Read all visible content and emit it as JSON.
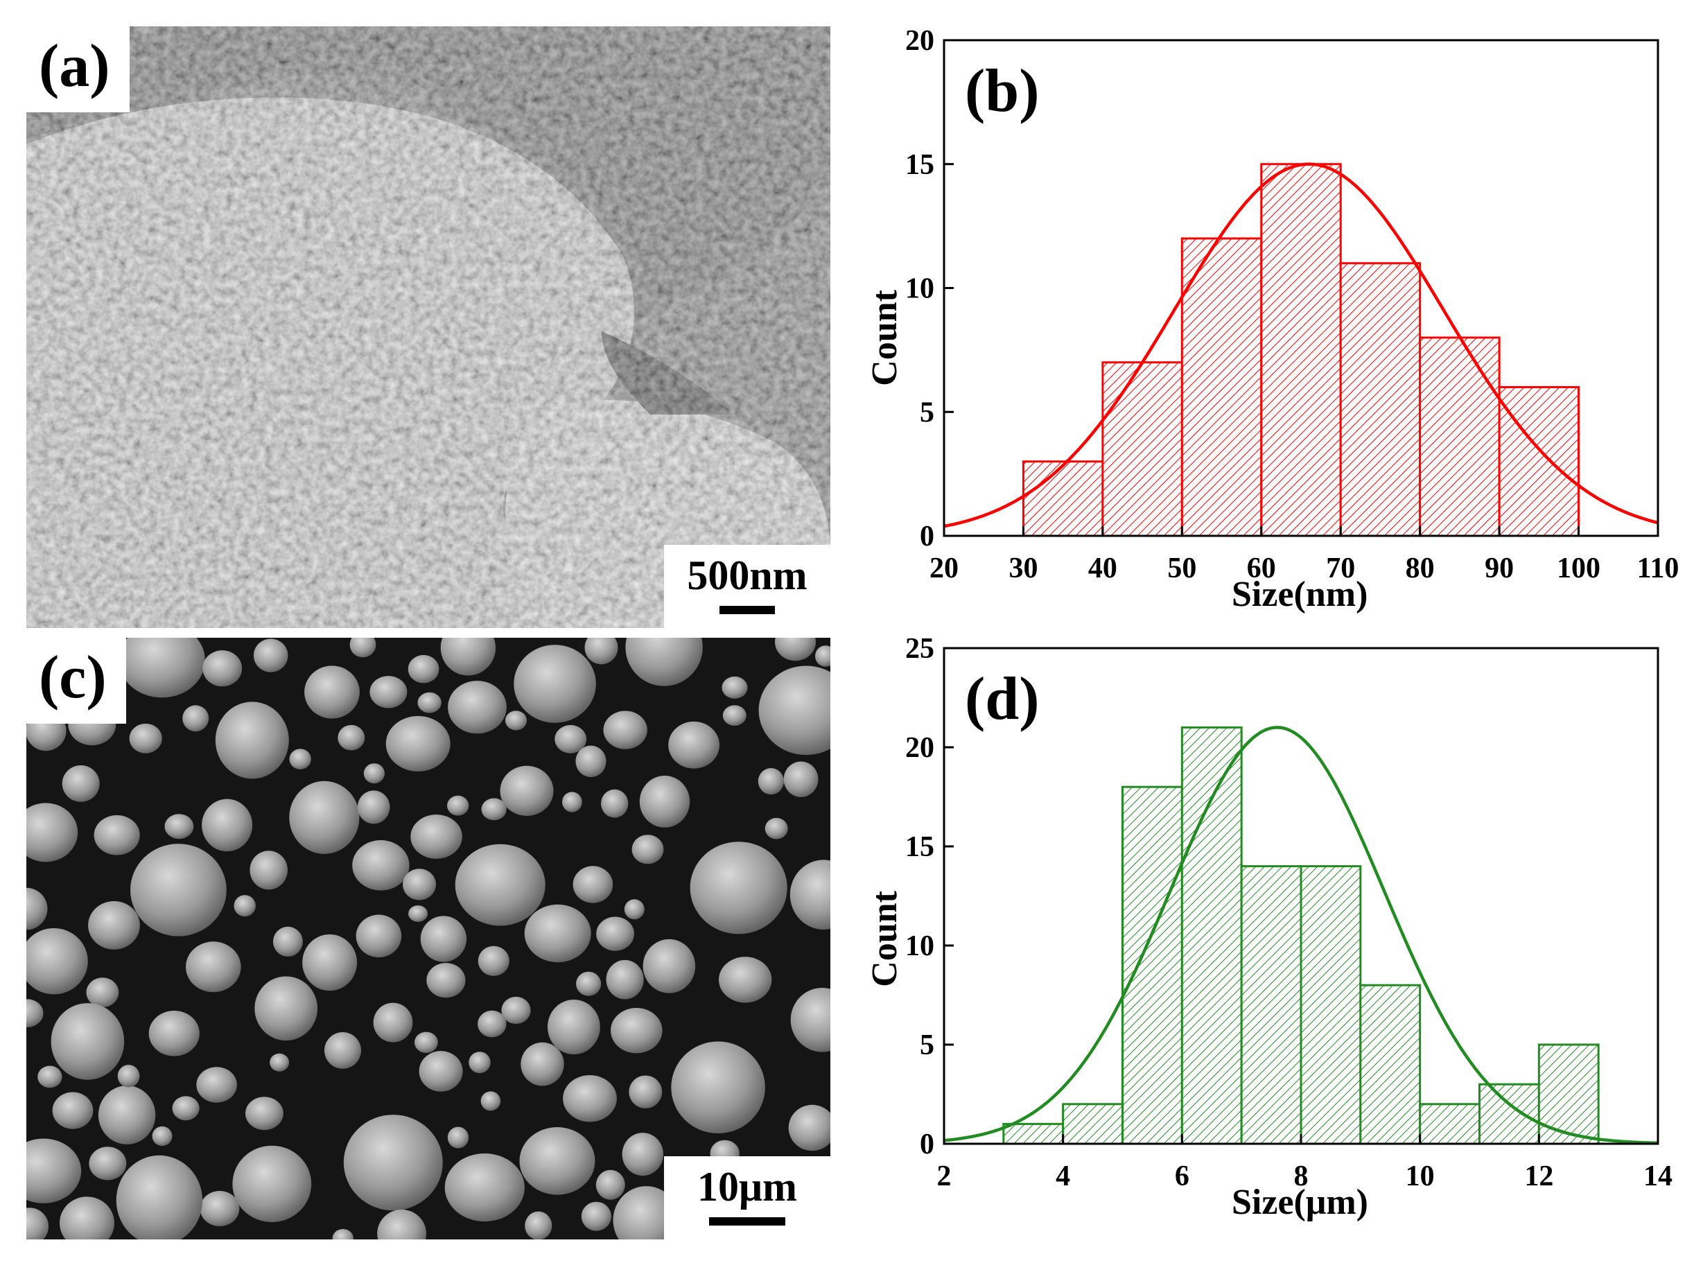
{
  "panels": {
    "a": {
      "label": "(a)",
      "scale_bar": "500nm"
    },
    "b": {
      "label": "(b)"
    },
    "c": {
      "label": "(c)",
      "scale_bar": "10μm"
    },
    "d": {
      "label": "(d)"
    }
  },
  "colors": {
    "red": "#ff0000",
    "green": "#228b22"
  },
  "chart_data": [
    {
      "type": "bar",
      "panel": "(b)",
      "title": "",
      "xlabel": "Size(nm)",
      "ylabel": "Count",
      "xlim": [
        20,
        110
      ],
      "ylim": [
        0,
        20
      ],
      "xticks": [
        20,
        30,
        40,
        50,
        60,
        70,
        80,
        90,
        100,
        110
      ],
      "yticks": [
        0,
        5,
        10,
        15,
        20
      ],
      "bins": [
        [
          30,
          40
        ],
        [
          40,
          50
        ],
        [
          50,
          60
        ],
        [
          60,
          70
        ],
        [
          70,
          80
        ],
        [
          80,
          90
        ],
        [
          90,
          100
        ]
      ],
      "values": [
        3,
        7,
        12,
        15,
        11,
        8,
        6
      ],
      "fit": {
        "type": "gaussian",
        "peak_x": 66,
        "peak_y": 15,
        "sigma": 17
      },
      "color": "#ff0000",
      "fill": "hatched",
      "grid": false
    },
    {
      "type": "bar",
      "panel": "(d)",
      "title": "",
      "xlabel": "Size(μm)",
      "ylabel": "Count",
      "xlim": [
        2,
        14
      ],
      "ylim": [
        0,
        25
      ],
      "xticks": [
        2,
        4,
        6,
        8,
        10,
        12,
        14
      ],
      "yticks": [
        0,
        5,
        10,
        15,
        20,
        25
      ],
      "bins": [
        [
          3,
          4
        ],
        [
          4,
          5
        ],
        [
          5,
          6
        ],
        [
          6,
          7
        ],
        [
          7,
          8
        ],
        [
          8,
          9
        ],
        [
          9,
          10
        ],
        [
          10,
          11
        ],
        [
          11,
          12
        ],
        [
          12,
          13
        ]
      ],
      "values": [
        1,
        2,
        18,
        21,
        14,
        14,
        8,
        2,
        3,
        5
      ],
      "fit": {
        "type": "gaussian",
        "peak_x": 7.6,
        "peak_y": 21,
        "sigma": 1.8
      },
      "color": "#228b22",
      "fill": "hatched",
      "grid": false
    }
  ]
}
